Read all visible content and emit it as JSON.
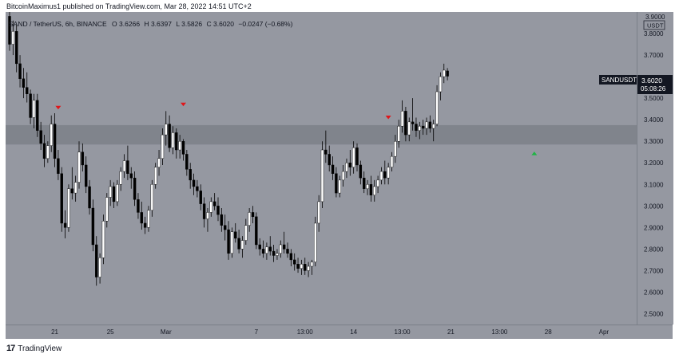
{
  "header": {
    "publisher_line": "BitcoinMaximus1 published on TradingView.com, Mar 28, 2022 14:51 UTC+2"
  },
  "legend": {
    "symbol": "SAND / TetherUS, 6h, BINANCE",
    "o_label": "O",
    "o_value": "3.6266",
    "h_label": "H",
    "h_value": "3.6397",
    "l_label": "L",
    "l_value": "3.5826",
    "c_label": "C",
    "c_value": "3.6020",
    "change": "−0.0247 (−0.68%)"
  },
  "price_badge": {
    "symbol": "SANDUSDT",
    "price": "3.6020",
    "countdown": "05:08:26"
  },
  "currency_badge": "USDT",
  "top_tick": "3.9000",
  "footer": {
    "logo_text": "17",
    "brand": "TradingView"
  },
  "colors": {
    "background": "#9598a1",
    "up_body": "#ffffff",
    "down_body": "#000000",
    "wick": "#000000",
    "zone": "#7a7d85",
    "red_marker": "#e0161b",
    "green_marker": "#1fb443",
    "text": "#131722"
  },
  "chart_data": {
    "type": "candlestick",
    "ylim": [
      2.45,
      3.9
    ],
    "yticks": [
      "3.8000",
      "3.7000",
      "3.5000",
      "3.4000",
      "3.3000",
      "3.2000",
      "3.1000",
      "3.0000",
      "2.9000",
      "2.8000",
      "2.7000",
      "2.6000",
      "2.5000"
    ],
    "ytick_values": [
      3.8,
      3.7,
      3.5,
      3.4,
      3.3,
      3.2,
      3.1,
      3.0,
      2.9,
      2.8,
      2.7,
      2.6,
      2.5
    ],
    "xticks": [
      {
        "label": "21",
        "index": 13
      },
      {
        "label": "25",
        "index": 29
      },
      {
        "label": "Mar",
        "index": 45
      },
      {
        "label": "7",
        "index": 71
      },
      {
        "label": "13:00",
        "index": 85
      },
      {
        "label": "14",
        "index": 99
      },
      {
        "label": "13:00",
        "index": 113
      },
      {
        "label": "21",
        "index": 127
      },
      {
        "label": "13:00",
        "index": 141
      },
      {
        "label": "28",
        "index": 155
      },
      {
        "label": "Apr",
        "index": 171
      }
    ],
    "resistance_zone": [
      3.285,
      3.375
    ],
    "markers": [
      {
        "type": "down",
        "color": "red",
        "index": 14,
        "price": 3.455
      },
      {
        "type": "down",
        "color": "red",
        "index": 50,
        "price": 3.47
      },
      {
        "type": "down",
        "color": "red",
        "index": 109,
        "price": 3.41
      },
      {
        "type": "up",
        "color": "green",
        "index": 151,
        "price": 3.245
      }
    ],
    "ohlc": [
      [
        3.88,
        3.9,
        3.72,
        3.75
      ],
      [
        3.75,
        3.86,
        3.7,
        3.81
      ],
      [
        3.81,
        3.84,
        3.62,
        3.66
      ],
      [
        3.66,
        3.7,
        3.55,
        3.59
      ],
      [
        3.59,
        3.64,
        3.5,
        3.55
      ],
      [
        3.55,
        3.62,
        3.48,
        3.52
      ],
      [
        3.52,
        3.54,
        3.38,
        3.41
      ],
      [
        3.41,
        3.52,
        3.36,
        3.49
      ],
      [
        3.49,
        3.52,
        3.32,
        3.35
      ],
      [
        3.35,
        3.39,
        3.26,
        3.29
      ],
      [
        3.29,
        3.33,
        3.18,
        3.22
      ],
      [
        3.22,
        3.3,
        3.2,
        3.28
      ],
      [
        3.28,
        3.42,
        3.25,
        3.38
      ],
      [
        3.38,
        3.43,
        3.18,
        3.22
      ],
      [
        3.22,
        3.26,
        3.12,
        3.15
      ],
      [
        3.15,
        3.18,
        2.88,
        2.92
      ],
      [
        2.92,
        2.98,
        2.85,
        2.9
      ],
      [
        2.9,
        3.1,
        2.88,
        3.08
      ],
      [
        3.08,
        3.18,
        3.03,
        3.06
      ],
      [
        3.06,
        3.14,
        3.02,
        3.11
      ],
      [
        3.11,
        3.3,
        3.08,
        3.25
      ],
      [
        3.25,
        3.29,
        3.16,
        3.19
      ],
      [
        3.19,
        3.23,
        3.06,
        3.09
      ],
      [
        3.09,
        3.12,
        2.96,
        2.99
      ],
      [
        2.99,
        3.03,
        2.79,
        2.82
      ],
      [
        2.82,
        2.86,
        2.63,
        2.67
      ],
      [
        2.67,
        2.78,
        2.64,
        2.76
      ],
      [
        2.76,
        2.96,
        2.73,
        2.93
      ],
      [
        2.93,
        3.06,
        2.9,
        3.04
      ],
      [
        3.04,
        3.12,
        3.0,
        3.09
      ],
      [
        3.09,
        3.11,
        2.99,
        3.02
      ],
      [
        3.02,
        3.12,
        3.0,
        3.1
      ],
      [
        3.1,
        3.18,
        3.07,
        3.16
      ],
      [
        3.16,
        3.24,
        3.13,
        3.21
      ],
      [
        3.21,
        3.28,
        3.12,
        3.15
      ],
      [
        3.15,
        3.18,
        3.08,
        3.13
      ],
      [
        3.13,
        3.16,
        3.0,
        3.03
      ],
      [
        3.03,
        3.06,
        2.94,
        2.97
      ],
      [
        2.97,
        3.02,
        2.89,
        2.92
      ],
      [
        2.92,
        2.95,
        2.87,
        2.9
      ],
      [
        2.9,
        3.0,
        2.88,
        2.98
      ],
      [
        2.98,
        3.12,
        2.95,
        3.1
      ],
      [
        3.1,
        3.2,
        3.08,
        3.18
      ],
      [
        3.18,
        3.26,
        3.14,
        3.22
      ],
      [
        3.22,
        3.36,
        3.19,
        3.33
      ],
      [
        3.33,
        3.44,
        3.28,
        3.38
      ],
      [
        3.38,
        3.42,
        3.25,
        3.27
      ],
      [
        3.27,
        3.37,
        3.24,
        3.34
      ],
      [
        3.34,
        3.36,
        3.22,
        3.26
      ],
      [
        3.26,
        3.33,
        3.22,
        3.3
      ],
      [
        3.3,
        3.31,
        3.21,
        3.24
      ],
      [
        3.24,
        3.26,
        3.14,
        3.17
      ],
      [
        3.17,
        3.2,
        3.08,
        3.12
      ],
      [
        3.12,
        3.15,
        3.05,
        3.09
      ],
      [
        3.09,
        3.12,
        3.04,
        3.07
      ],
      [
        3.07,
        3.1,
        2.98,
        3.01
      ],
      [
        3.01,
        3.04,
        2.9,
        2.94
      ],
      [
        2.94,
        2.99,
        2.88,
        2.97
      ],
      [
        2.97,
        3.04,
        2.95,
        3.02
      ],
      [
        3.02,
        3.06,
        2.98,
        3.0
      ],
      [
        3.0,
        3.04,
        2.93,
        2.96
      ],
      [
        2.96,
        2.99,
        2.88,
        2.91
      ],
      [
        2.91,
        2.96,
        2.84,
        2.89
      ],
      [
        2.89,
        2.93,
        2.75,
        2.78
      ],
      [
        2.78,
        2.9,
        2.76,
        2.88
      ],
      [
        2.88,
        2.92,
        2.83,
        2.85
      ],
      [
        2.85,
        2.89,
        2.78,
        2.8
      ],
      [
        2.8,
        2.86,
        2.76,
        2.84
      ],
      [
        2.84,
        2.94,
        2.82,
        2.91
      ],
      [
        2.91,
        2.99,
        2.88,
        2.97
      ],
      [
        2.97,
        3.0,
        2.92,
        2.95
      ],
      [
        2.95,
        2.97,
        2.8,
        2.82
      ],
      [
        2.82,
        2.85,
        2.77,
        2.8
      ],
      [
        2.8,
        2.84,
        2.76,
        2.78
      ],
      [
        2.78,
        2.83,
        2.75,
        2.81
      ],
      [
        2.81,
        2.86,
        2.77,
        2.79
      ],
      [
        2.79,
        2.82,
        2.74,
        2.77
      ],
      [
        2.77,
        2.8,
        2.75,
        2.78
      ],
      [
        2.78,
        2.84,
        2.76,
        2.82
      ],
      [
        2.82,
        2.88,
        2.78,
        2.8
      ],
      [
        2.8,
        2.83,
        2.76,
        2.78
      ],
      [
        2.78,
        2.8,
        2.72,
        2.75
      ],
      [
        2.75,
        2.78,
        2.7,
        2.73
      ],
      [
        2.73,
        2.76,
        2.69,
        2.71
      ],
      [
        2.71,
        2.75,
        2.68,
        2.73
      ],
      [
        2.73,
        2.76,
        2.68,
        2.7
      ],
      [
        2.7,
        2.74,
        2.67,
        2.72
      ],
      [
        2.72,
        2.75,
        2.68,
        2.74
      ],
      [
        2.74,
        2.95,
        2.72,
        2.92
      ],
      [
        2.92,
        3.05,
        2.88,
        3.02
      ],
      [
        3.02,
        3.3,
        2.99,
        3.26
      ],
      [
        3.26,
        3.35,
        3.2,
        3.24
      ],
      [
        3.24,
        3.28,
        3.16,
        3.19
      ],
      [
        3.19,
        3.23,
        3.12,
        3.15
      ],
      [
        3.15,
        3.18,
        3.04,
        3.06
      ],
      [
        3.06,
        3.14,
        3.04,
        3.12
      ],
      [
        3.12,
        3.19,
        3.09,
        3.16
      ],
      [
        3.16,
        3.22,
        3.13,
        3.2
      ],
      [
        3.2,
        3.26,
        3.14,
        3.18
      ],
      [
        3.18,
        3.3,
        3.15,
        3.27
      ],
      [
        3.27,
        3.29,
        3.16,
        3.19
      ],
      [
        3.19,
        3.21,
        3.1,
        3.13
      ],
      [
        3.13,
        3.16,
        3.06,
        3.08
      ],
      [
        3.08,
        3.12,
        3.05,
        3.1
      ],
      [
        3.1,
        3.14,
        3.02,
        3.05
      ],
      [
        3.05,
        3.12,
        3.02,
        3.09
      ],
      [
        3.09,
        3.14,
        3.06,
        3.12
      ],
      [
        3.12,
        3.18,
        3.1,
        3.16
      ],
      [
        3.16,
        3.21,
        3.1,
        3.13
      ],
      [
        3.13,
        3.2,
        3.1,
        3.18
      ],
      [
        3.18,
        3.25,
        3.16,
        3.23
      ],
      [
        3.23,
        3.33,
        3.2,
        3.3
      ],
      [
        3.3,
        3.4,
        3.27,
        3.37
      ],
      [
        3.37,
        3.49,
        3.34,
        3.44
      ],
      [
        3.44,
        3.46,
        3.3,
        3.33
      ],
      [
        3.33,
        3.41,
        3.3,
        3.39
      ],
      [
        3.39,
        3.5,
        3.35,
        3.38
      ],
      [
        3.38,
        3.41,
        3.32,
        3.35
      ],
      [
        3.35,
        3.39,
        3.31,
        3.37
      ],
      [
        3.37,
        3.4,
        3.33,
        3.36
      ],
      [
        3.36,
        3.41,
        3.33,
        3.39
      ],
      [
        3.39,
        3.42,
        3.34,
        3.36
      ],
      [
        3.36,
        3.4,
        3.3,
        3.38
      ],
      [
        3.38,
        3.56,
        3.37,
        3.53
      ],
      [
        3.53,
        3.62,
        3.49,
        3.6
      ],
      [
        3.6,
        3.66,
        3.57,
        3.63
      ],
      [
        3.6266,
        3.6397,
        3.5826,
        3.602
      ]
    ]
  }
}
